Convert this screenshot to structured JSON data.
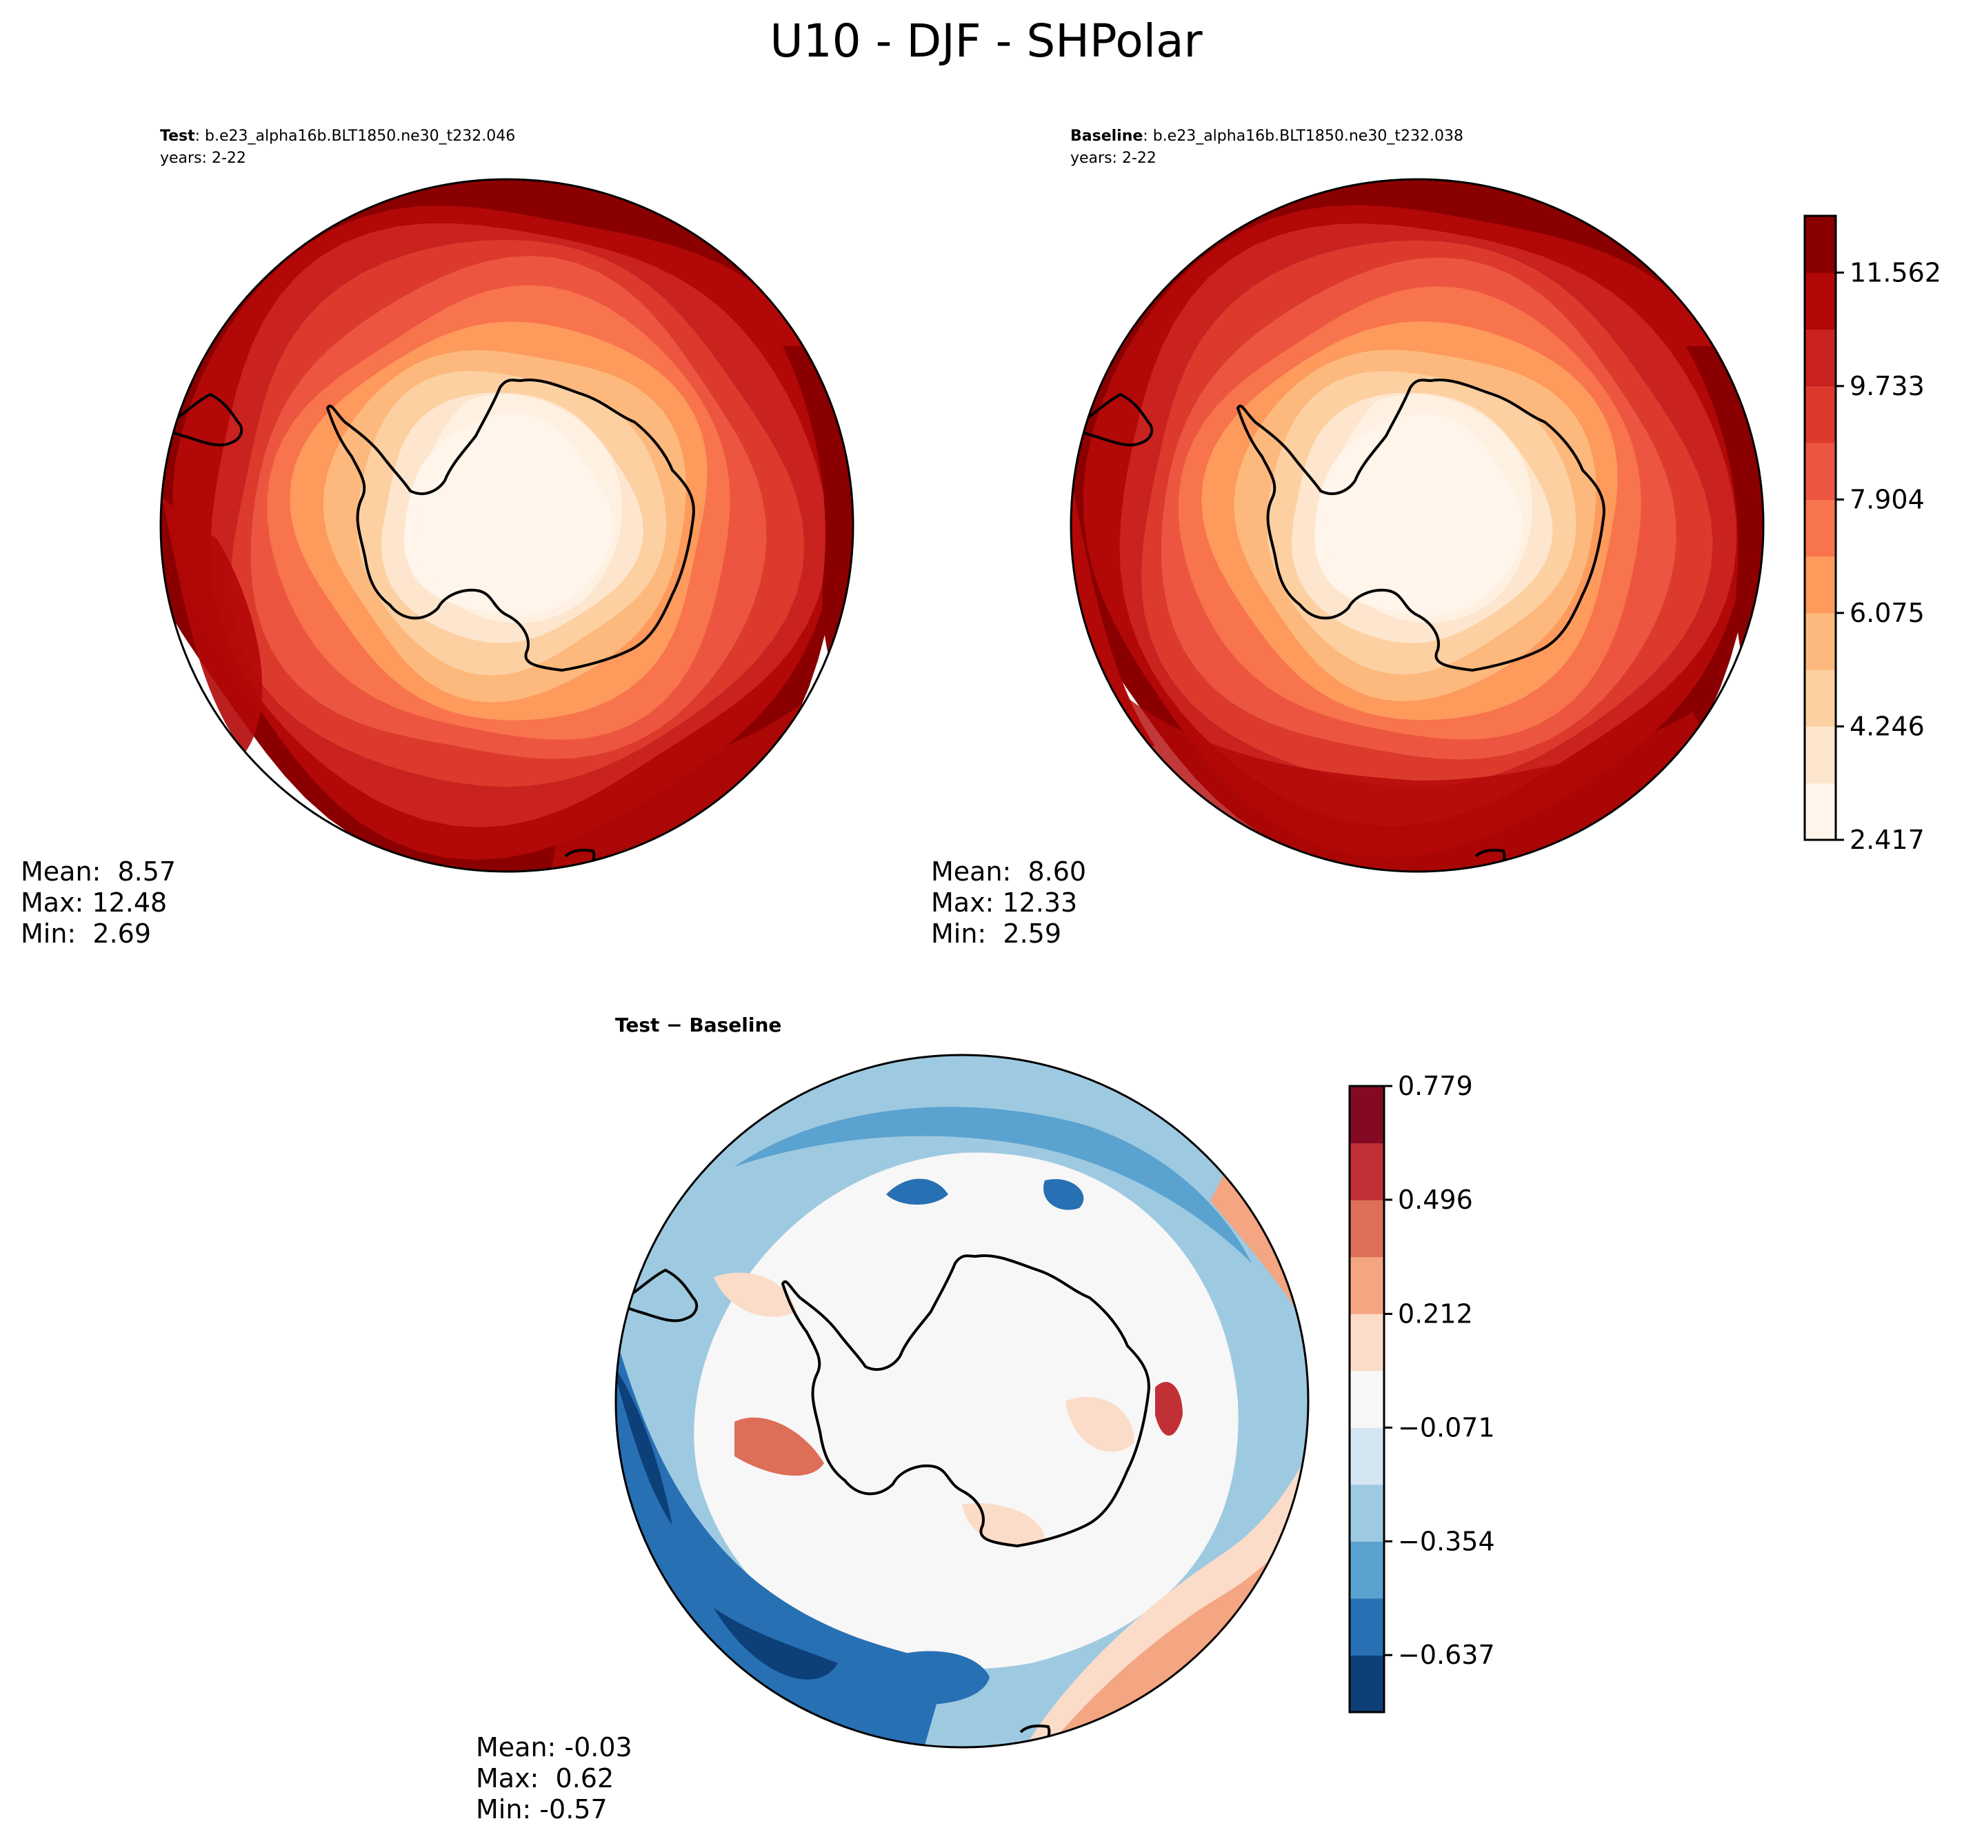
{
  "figure": {
    "title": "U10 - DJF - SHPolar"
  },
  "chart_data": [
    {
      "type": "heatmap",
      "title_bold": "Test",
      "title_rest": ": b.e23_alpha16b.BLT1850.ne30_t232.046",
      "subtitle": "years: 2-22",
      "projection": "south-polar-stereographic",
      "stats": {
        "mean": "8.57",
        "max": "12.48",
        "min": "2.69"
      },
      "stats_lines": [
        "Mean:  8.57",
        "Max: 12.48",
        "Min:  2.69"
      ],
      "colormap": "Reds",
      "contour_levels": [
        2.417,
        3.332,
        4.246,
        5.161,
        6.075,
        6.99,
        7.904,
        8.819,
        9.733,
        10.648,
        11.562,
        12.477
      ],
      "fill_colors": [
        "#fff5eb",
        "#fee6ce",
        "#fdd0a2",
        "#fdb97d",
        "#fd9a5c",
        "#f8744c",
        "#ec5640",
        "#dc3a2d",
        "#c9221f",
        "#b20808",
        "#8a0000"
      ]
    },
    {
      "type": "heatmap",
      "title_bold": "Baseline",
      "title_rest": ": b.e23_alpha16b.BLT1850.ne30_t232.038",
      "subtitle": "years: 2-22",
      "projection": "south-polar-stereographic",
      "stats": {
        "mean": "8.60",
        "max": "12.33",
        "min": "2.59"
      },
      "stats_lines": [
        "Mean:  8.60",
        "Max: 12.33",
        "Min:  2.59"
      ],
      "colorbar": {
        "ticks": [
          2.417,
          4.246,
          6.075,
          7.904,
          9.733,
          11.562
        ],
        "tick_labels": [
          "2.417",
          "4.246",
          "6.075",
          "7.904",
          "9.733",
          "11.562"
        ],
        "range": [
          2.417,
          12.477
        ],
        "colors": [
          "#fff5eb",
          "#fee6ce",
          "#fdd0a2",
          "#fdb97d",
          "#fd9a5c",
          "#f8744c",
          "#ec5640",
          "#dc3a2d",
          "#c9221f",
          "#b20808",
          "#8a0000"
        ]
      }
    },
    {
      "type": "heatmap",
      "title": "Test − Baseline",
      "projection": "south-polar-stereographic",
      "stats": {
        "mean": "-0.03",
        "max": "0.62",
        "min": "-0.57"
      },
      "stats_lines": [
        "Mean: -0.03",
        "Max:  0.62",
        "Min: -0.57"
      ],
      "colorbar": {
        "ticks": [
          -0.637,
          -0.354,
          -0.071,
          0.212,
          0.496,
          0.779
        ],
        "tick_labels": [
          "−0.637",
          "−0.354",
          "−0.071",
          "0.212",
          "0.496",
          "0.779"
        ],
        "range": [
          -0.779,
          0.779
        ],
        "colors": [
          "#0d3f78",
          "#2870b4",
          "#5aa2cf",
          "#9ecae1",
          "#d4e6f2",
          "#f7f7f7",
          "#fbdcc8",
          "#f4a582",
          "#dd6e57",
          "#c03035",
          "#840a24"
        ]
      }
    }
  ]
}
